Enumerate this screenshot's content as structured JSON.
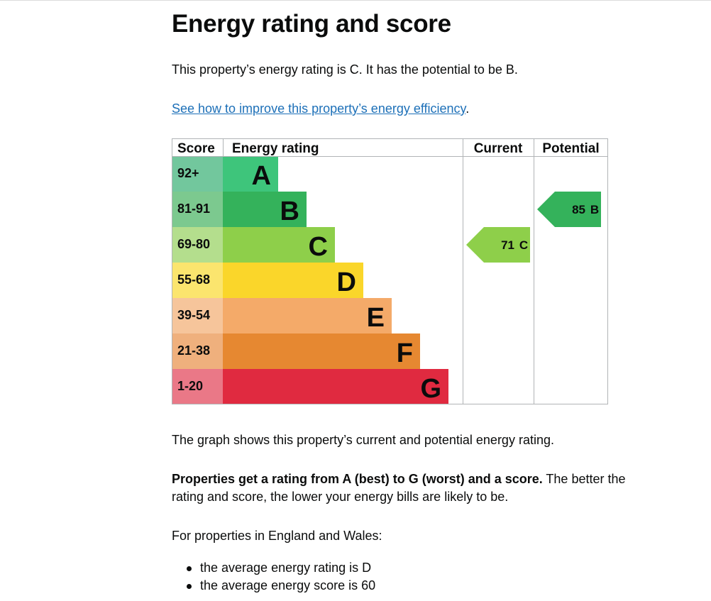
{
  "page": {
    "title": "Energy rating and score",
    "intro": "This property’s energy rating is C. It has the potential to be B.",
    "improve_link": "See how to improve this property’s energy efficiency",
    "improve_link_suffix": ".",
    "graph_note": "The graph shows this property’s current and potential energy rating.",
    "rating_explainer_bold": "Properties get a rating from A (best) to G (worst) and a score.",
    "rating_explainer_rest": " The better the rating and score, the lower your energy bills are likely to be.",
    "region_note": "For properties in England and Wales:",
    "averages": [
      "the average energy rating is D",
      "the average energy score is 60"
    ]
  },
  "chart_data": {
    "type": "bar",
    "headers": {
      "score": "Score",
      "rating": "Energy rating",
      "current": "Current",
      "potential": "Potential"
    },
    "bands": [
      {
        "band": "A",
        "range": "92+",
        "color": "#3ec57b",
        "range_color": "#72c79d"
      },
      {
        "band": "B",
        "range": "81-91",
        "color": "#34b25b",
        "range_color": "#7cc98f"
      },
      {
        "band": "C",
        "range": "69-80",
        "color": "#8ecf4a",
        "range_color": "#b4de8d"
      },
      {
        "band": "D",
        "range": "55-68",
        "color": "#fad62a",
        "range_color": "#fbe56e"
      },
      {
        "band": "E",
        "range": "39-54",
        "color": "#f4aa69",
        "range_color": "#f6c59b"
      },
      {
        "band": "F",
        "range": "21-38",
        "color": "#e68831",
        "range_color": "#efb07d"
      },
      {
        "band": "G",
        "range": "1-20",
        "color": "#e02a40",
        "range_color": "#ea7887"
      }
    ],
    "current": {
      "score": "71",
      "band": "C",
      "color": "#8ecf4a"
    },
    "potential": {
      "score": "85",
      "band": "B",
      "color": "#34b25b"
    }
  }
}
